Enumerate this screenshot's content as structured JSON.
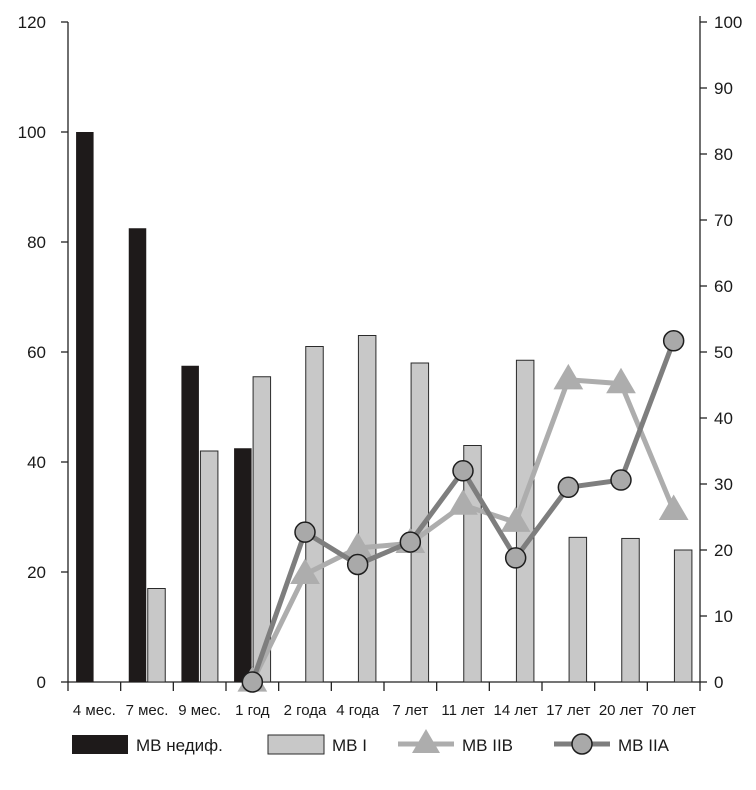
{
  "chart_data": {
    "type": "bar",
    "categories": [
      "4 мес.",
      "7 мес.",
      "9 мес.",
      "1 год",
      "2 года",
      "4 года",
      "7 лет",
      "11 лет",
      "14 лет",
      "17 лет",
      "20 лет",
      "70 лет"
    ],
    "y_left": {
      "min": 0,
      "max": 120,
      "ticks": [
        0,
        20,
        40,
        60,
        80,
        100,
        120
      ]
    },
    "y_right": {
      "min": 0,
      "max": 100,
      "ticks": [
        0,
        10,
        20,
        30,
        40,
        50,
        60,
        70,
        80,
        90,
        100
      ]
    },
    "grid": false,
    "legend_position": "bottom",
    "series": [
      {
        "name": "МВ недиф.",
        "kind": "bar",
        "axis": "left",
        "color": "#1e1a1a",
        "values": [
          100,
          82.5,
          57.5,
          42.5,
          null,
          null,
          null,
          null,
          null,
          null,
          null,
          null
        ]
      },
      {
        "name": "МВ I",
        "kind": "bar",
        "axis": "left",
        "color": "#c8c8c8",
        "values": [
          null,
          17,
          42,
          55.5,
          61,
          63,
          58,
          43,
          58.5,
          26.3,
          26.1,
          24
        ]
      },
      {
        "name": "МВ IIВ",
        "kind": "line",
        "marker": "triangle",
        "axis": "right",
        "color": "#adadad",
        "values": [
          null,
          null,
          null,
          0,
          16.3,
          20.3,
          21,
          26.8,
          24.2,
          45.8,
          45.2,
          26
        ]
      },
      {
        "name": "МВ IIА",
        "kind": "line",
        "marker": "circle",
        "axis": "right",
        "color": "#7e7e7e",
        "values": [
          null,
          null,
          null,
          0,
          22.7,
          17.8,
          21.2,
          32,
          18.8,
          29.5,
          30.6,
          51.7
        ]
      }
    ]
  }
}
